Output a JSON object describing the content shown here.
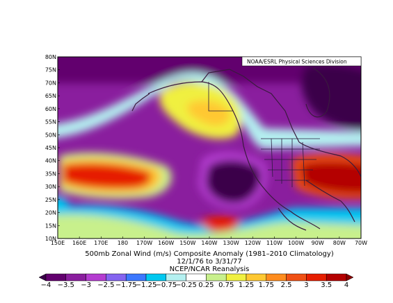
{
  "map": {
    "credit": "NOAA/ESRL Physical Sciences Division",
    "lat_labels": [
      "80N",
      "75N",
      "70N",
      "65N",
      "60N",
      "55N",
      "50N",
      "45N",
      "40N",
      "35N",
      "30N",
      "25N",
      "20N",
      "15N",
      "10N"
    ],
    "lon_labels": [
      "150E",
      "160E",
      "170E",
      "180",
      "170W",
      "160W",
      "150W",
      "140W",
      "130W",
      "120W",
      "110W",
      "100W",
      "90W",
      "80W",
      "70W"
    ],
    "field": "500mb Zonal Wind (m/s) Composite Anomaly",
    "region": "North Pacific / North America"
  },
  "caption": {
    "line1": "500mb Zonal Wind (m/s) Composite Anomaly (1981–2010 Climatology)",
    "line2": "12/1/76  to 3/31/77",
    "line3": "NCEP/NCAR Reanalysis"
  },
  "colorbar": {
    "labels": [
      "−4",
      "−3.5",
      "−3",
      "−2.5",
      "−1.75",
      "−1.25",
      "−0.75",
      "−0.25",
      "0.25",
      "0.75",
      "1.25",
      "1.75",
      "2.5",
      "3",
      "3.5",
      "4"
    ],
    "colors": [
      "#3a0048",
      "#62006e",
      "#8a1e9e",
      "#b43cd0",
      "#8464f0",
      "#3c78ff",
      "#00c8f0",
      "#b4f0f0",
      "#ffffff",
      "#c8f08c",
      "#f0f040",
      "#ffc832",
      "#ff8c1e",
      "#f05014",
      "#e61e00",
      "#b40000",
      "#8c0000"
    ]
  }
}
